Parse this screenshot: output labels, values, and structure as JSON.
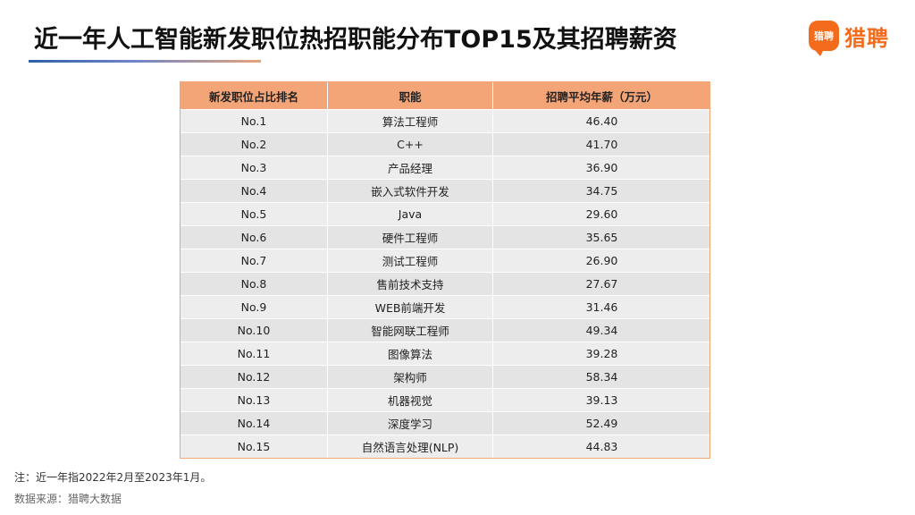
{
  "title": "近一年人工智能新发职位热招职能分布TOP15及其招聘薪资",
  "logo": {
    "mark_text": "猎聘",
    "text": "猎聘"
  },
  "table": {
    "headers": [
      "新发职位占比排名",
      "职能",
      "招聘平均年薪（万元）"
    ],
    "rows": [
      [
        "No.1",
        "算法工程师",
        "46.40"
      ],
      [
        "No.2",
        "C++",
        "41.70"
      ],
      [
        "No.3",
        "产品经理",
        "36.90"
      ],
      [
        "No.4",
        "嵌入式软件开发",
        "34.75"
      ],
      [
        "No.5",
        "Java",
        "29.60"
      ],
      [
        "No.6",
        "硬件工程师",
        "35.65"
      ],
      [
        "No.7",
        "测试工程师",
        "26.90"
      ],
      [
        "No.8",
        "售前技术支持",
        "27.67"
      ],
      [
        "No.9",
        "WEB前端开发",
        "31.46"
      ],
      [
        "No.10",
        "智能网联工程师",
        "49.34"
      ],
      [
        "No.11",
        "图像算法",
        "39.28"
      ],
      [
        "No.12",
        "架构师",
        "58.34"
      ],
      [
        "No.13",
        "机器视觉",
        "39.13"
      ],
      [
        "No.14",
        "深度学习",
        "52.49"
      ],
      [
        "No.15",
        "自然语言处理(NLP)",
        "44.83"
      ]
    ]
  },
  "note": "注：近一年指2022年2月至2023年1月。",
  "source": "数据来源：猎聘大数据",
  "colors": {
    "header_bg": "#f4a578",
    "row_bg": "#ededed",
    "row_alt_bg": "#e4e4e4",
    "brand": "#f46b1c"
  }
}
